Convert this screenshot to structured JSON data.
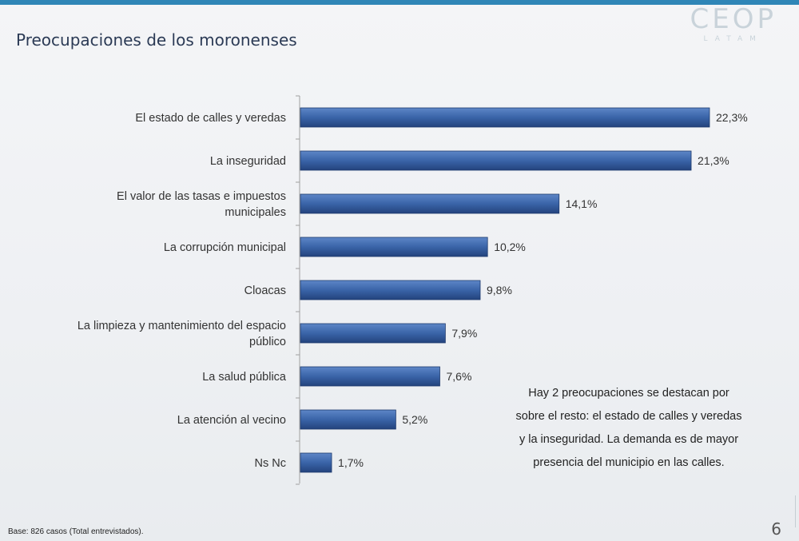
{
  "header": {
    "title": "Preocupaciones de los moronenses"
  },
  "logo": {
    "main": "CEOP",
    "sub": "LATAM"
  },
  "chart_data": {
    "type": "bar",
    "orientation": "horizontal",
    "title": "",
    "categories": [
      "El estado de calles y veredas",
      "La inseguridad",
      "El valor de las tasas e impuestos municipales",
      "La corrupción municipal",
      "Cloacas",
      "La limpieza y mantenimiento del espacio público",
      "La salud pública",
      "La atención al vecino",
      "Ns Nc"
    ],
    "category_lines": [
      [
        "El estado de calles y veredas"
      ],
      [
        "La inseguridad"
      ],
      [
        "El valor de las tasas e impuestos",
        "municipales"
      ],
      [
        "La corrupción municipal"
      ],
      [
        "Cloacas"
      ],
      [
        "La limpieza y mantenimiento del espacio",
        "público"
      ],
      [
        "La salud pública"
      ],
      [
        "La atención al vecino"
      ],
      [
        "Ns Nc"
      ]
    ],
    "values": [
      22.3,
      21.3,
      14.1,
      10.2,
      9.8,
      7.9,
      7.6,
      5.2,
      1.7
    ],
    "value_labels": [
      "22,3%",
      "21,3%",
      "14,1%",
      "10,2%",
      "9,8%",
      "7,9%",
      "7,6%",
      "5,2%",
      "1,7%"
    ],
    "xlim": [
      0,
      22.3
    ],
    "bar_color": "#3a64a8",
    "grid": false,
    "legend": "none"
  },
  "note": {
    "lines": [
      "Hay 2 preocupaciones se destacan por",
      "sobre el resto: el estado de calles y veredas",
      "y la inseguridad. La demanda es de mayor",
      "presencia del municipio en las calles."
    ]
  },
  "footer": {
    "base": "Base: 826 casos (Total entrevistados).",
    "page": "6"
  }
}
